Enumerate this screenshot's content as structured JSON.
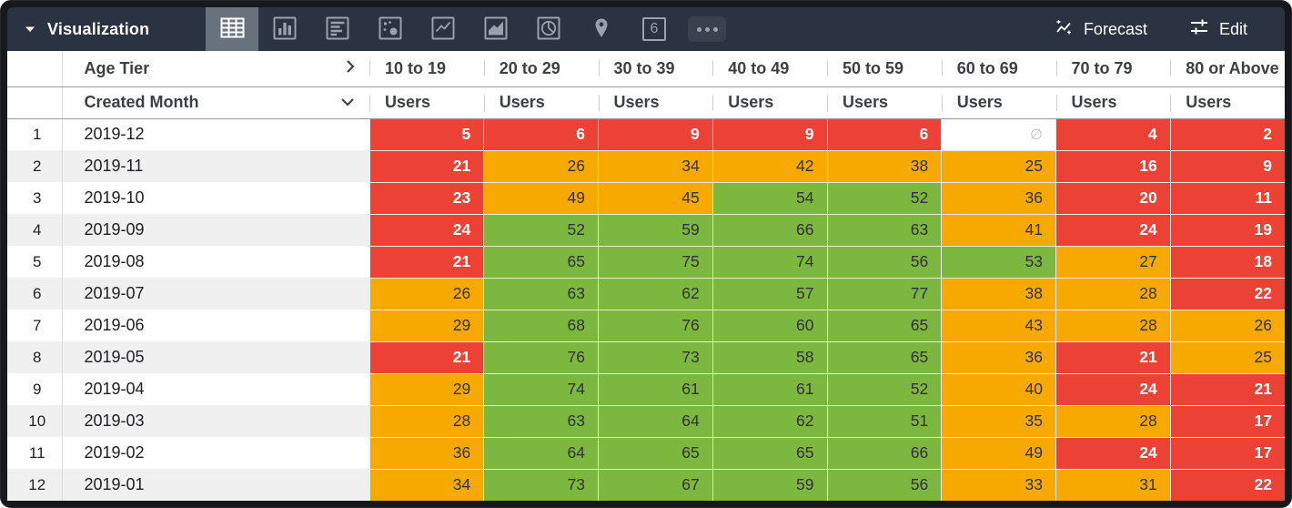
{
  "toolbar": {
    "title": "Visualization",
    "single_value_label": "6",
    "forecast_label": "Forecast",
    "edit_label": "Edit",
    "selected_viz": "table",
    "viz_types": [
      "table",
      "bar-chart",
      "row-chart",
      "scatter",
      "line-chart",
      "area-chart",
      "pie-chart",
      "map-pin",
      "single-value",
      "more"
    ]
  },
  "table": {
    "pivot_field": "Age Tier",
    "dimension_field": "Created Month",
    "measure_label": "Users",
    "null_display": "∅",
    "tiers": [
      "10 to 19",
      "20 to 29",
      "30 to 39",
      "40 to 49",
      "50 to 59",
      "60 to 69",
      "70 to 79",
      "80 or Above"
    ],
    "colors": {
      "red": "#EC4236",
      "orange": "#F7A900",
      "green": "#7CB83F"
    },
    "rows": [
      {
        "index": 1,
        "month": "2019-12",
        "cells": [
          {
            "value": 5,
            "level": "red"
          },
          {
            "value": 6,
            "level": "red"
          },
          {
            "value": 9,
            "level": "red"
          },
          {
            "value": 9,
            "level": "red"
          },
          {
            "value": 6,
            "level": "red"
          },
          {
            "value": null,
            "level": "none"
          },
          {
            "value": 4,
            "level": "red"
          },
          {
            "value": 2,
            "level": "red"
          }
        ]
      },
      {
        "index": 2,
        "month": "2019-11",
        "cells": [
          {
            "value": 21,
            "level": "red"
          },
          {
            "value": 26,
            "level": "orange"
          },
          {
            "value": 34,
            "level": "orange"
          },
          {
            "value": 42,
            "level": "orange"
          },
          {
            "value": 38,
            "level": "orange"
          },
          {
            "value": 25,
            "level": "orange"
          },
          {
            "value": 16,
            "level": "red"
          },
          {
            "value": 9,
            "level": "red"
          }
        ]
      },
      {
        "index": 3,
        "month": "2019-10",
        "cells": [
          {
            "value": 23,
            "level": "red"
          },
          {
            "value": 49,
            "level": "orange"
          },
          {
            "value": 45,
            "level": "orange"
          },
          {
            "value": 54,
            "level": "green"
          },
          {
            "value": 52,
            "level": "green"
          },
          {
            "value": 36,
            "level": "orange"
          },
          {
            "value": 20,
            "level": "red"
          },
          {
            "value": 11,
            "level": "red"
          }
        ]
      },
      {
        "index": 4,
        "month": "2019-09",
        "cells": [
          {
            "value": 24,
            "level": "red"
          },
          {
            "value": 52,
            "level": "green"
          },
          {
            "value": 59,
            "level": "green"
          },
          {
            "value": 66,
            "level": "green"
          },
          {
            "value": 63,
            "level": "green"
          },
          {
            "value": 41,
            "level": "orange"
          },
          {
            "value": 24,
            "level": "red"
          },
          {
            "value": 19,
            "level": "red"
          }
        ]
      },
      {
        "index": 5,
        "month": "2019-08",
        "cells": [
          {
            "value": 21,
            "level": "red"
          },
          {
            "value": 65,
            "level": "green"
          },
          {
            "value": 75,
            "level": "green"
          },
          {
            "value": 74,
            "level": "green"
          },
          {
            "value": 56,
            "level": "green"
          },
          {
            "value": 53,
            "level": "green"
          },
          {
            "value": 27,
            "level": "orange"
          },
          {
            "value": 18,
            "level": "red"
          }
        ]
      },
      {
        "index": 6,
        "month": "2019-07",
        "cells": [
          {
            "value": 26,
            "level": "orange"
          },
          {
            "value": 63,
            "level": "green"
          },
          {
            "value": 62,
            "level": "green"
          },
          {
            "value": 57,
            "level": "green"
          },
          {
            "value": 77,
            "level": "green"
          },
          {
            "value": 38,
            "level": "orange"
          },
          {
            "value": 28,
            "level": "orange"
          },
          {
            "value": 22,
            "level": "red"
          }
        ]
      },
      {
        "index": 7,
        "month": "2019-06",
        "cells": [
          {
            "value": 29,
            "level": "orange"
          },
          {
            "value": 68,
            "level": "green"
          },
          {
            "value": 76,
            "level": "green"
          },
          {
            "value": 60,
            "level": "green"
          },
          {
            "value": 65,
            "level": "green"
          },
          {
            "value": 43,
            "level": "orange"
          },
          {
            "value": 28,
            "level": "orange"
          },
          {
            "value": 26,
            "level": "orange"
          }
        ]
      },
      {
        "index": 8,
        "month": "2019-05",
        "cells": [
          {
            "value": 21,
            "level": "red"
          },
          {
            "value": 76,
            "level": "green"
          },
          {
            "value": 73,
            "level": "green"
          },
          {
            "value": 58,
            "level": "green"
          },
          {
            "value": 65,
            "level": "green"
          },
          {
            "value": 36,
            "level": "orange"
          },
          {
            "value": 21,
            "level": "red"
          },
          {
            "value": 25,
            "level": "orange"
          }
        ]
      },
      {
        "index": 9,
        "month": "2019-04",
        "cells": [
          {
            "value": 29,
            "level": "orange"
          },
          {
            "value": 74,
            "level": "green"
          },
          {
            "value": 61,
            "level": "green"
          },
          {
            "value": 61,
            "level": "green"
          },
          {
            "value": 52,
            "level": "green"
          },
          {
            "value": 40,
            "level": "orange"
          },
          {
            "value": 24,
            "level": "red"
          },
          {
            "value": 21,
            "level": "red"
          }
        ]
      },
      {
        "index": 10,
        "month": "2019-03",
        "cells": [
          {
            "value": 28,
            "level": "orange"
          },
          {
            "value": 63,
            "level": "green"
          },
          {
            "value": 64,
            "level": "green"
          },
          {
            "value": 62,
            "level": "green"
          },
          {
            "value": 51,
            "level": "green"
          },
          {
            "value": 35,
            "level": "orange"
          },
          {
            "value": 28,
            "level": "orange"
          },
          {
            "value": 17,
            "level": "red"
          }
        ]
      },
      {
        "index": 11,
        "month": "2019-02",
        "cells": [
          {
            "value": 36,
            "level": "orange"
          },
          {
            "value": 64,
            "level": "green"
          },
          {
            "value": 65,
            "level": "green"
          },
          {
            "value": 65,
            "level": "green"
          },
          {
            "value": 66,
            "level": "green"
          },
          {
            "value": 49,
            "level": "orange"
          },
          {
            "value": 24,
            "level": "red"
          },
          {
            "value": 17,
            "level": "red"
          }
        ]
      },
      {
        "index": 12,
        "month": "2019-01",
        "cells": [
          {
            "value": 34,
            "level": "orange"
          },
          {
            "value": 73,
            "level": "green"
          },
          {
            "value": 67,
            "level": "green"
          },
          {
            "value": 59,
            "level": "green"
          },
          {
            "value": 56,
            "level": "green"
          },
          {
            "value": 33,
            "level": "orange"
          },
          {
            "value": 31,
            "level": "orange"
          },
          {
            "value": 22,
            "level": "red"
          }
        ]
      }
    ]
  }
}
